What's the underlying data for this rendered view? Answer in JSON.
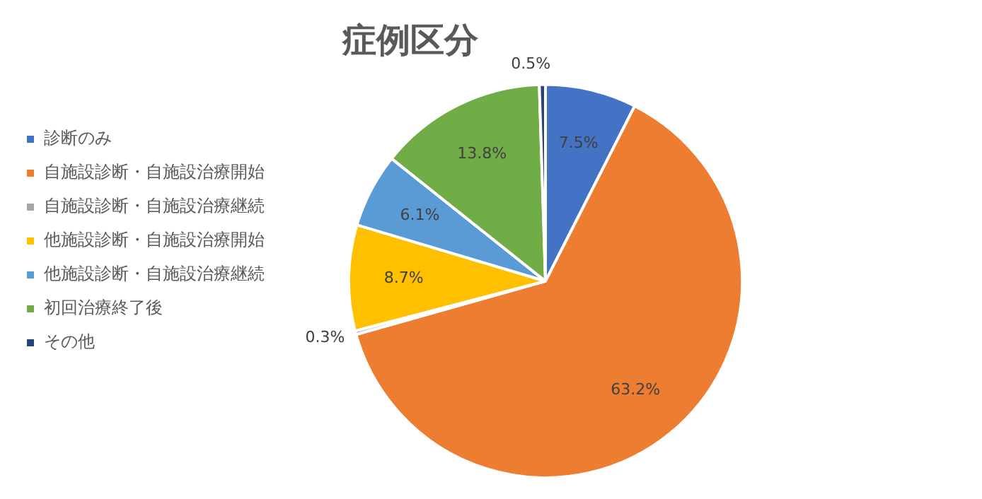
{
  "chart_data": {
    "type": "pie",
    "title": "症例区分",
    "categories": [
      "診断のみ",
      "自施設診断・自施設治療開始",
      "自施設診断・自施設治療継続",
      "他施設診断・自施設治療開始",
      "他施設診断・自施設治療継続",
      "初回治療終了後",
      "その他"
    ],
    "values": [
      7.5,
      63.2,
      0.3,
      8.7,
      6.1,
      13.8,
      0.5
    ],
    "colors": [
      "#4472c4",
      "#ed7d31",
      "#a5a5a5",
      "#ffc000",
      "#5b9bd5",
      "#70ad47",
      "#264478"
    ],
    "value_labels": [
      "7.5%",
      "63.2%",
      "0.3%",
      "8.7%",
      "6.1%",
      "13.8%",
      "0.5%"
    ],
    "legend": "left"
  }
}
